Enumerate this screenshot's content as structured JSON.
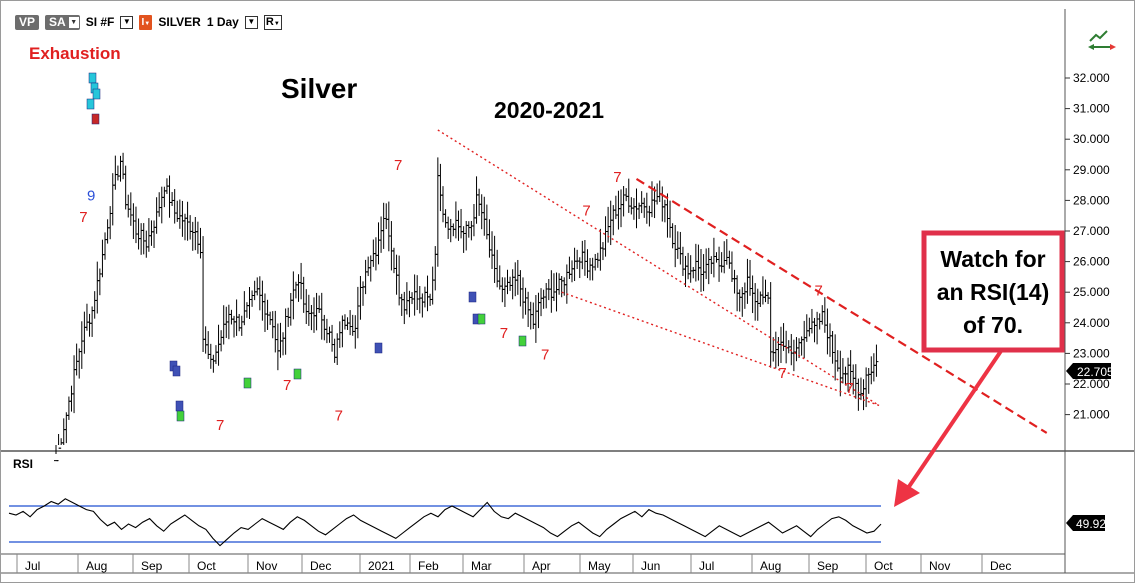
{
  "toolbar": {
    "vp_label": "VP",
    "sa_label": "SA",
    "symbol": "SI #F",
    "indicator_label": "I",
    "instrument": "SILVER",
    "timeframe": "1 Day",
    "r_label": "R"
  },
  "texts": {
    "exhaustion": "Exhaustion",
    "title": "Silver",
    "subtitle": "2020-2021",
    "rsi_title": "RSI",
    "callout": [
      "Watch for",
      "an RSI(14)",
      "of 70."
    ],
    "last_price": "22.705",
    "rsi_last": "49.92"
  },
  "colors": {
    "bars": "#000000",
    "trendline": "#e02020",
    "callout_border": "#e0304a",
    "arrow": "#ee3344",
    "rsi_line": "#000000",
    "rsi_bands": "#1f4fd0",
    "exhaustion_text": "#e02020",
    "setup_text": "#e02020",
    "blue_marks": "#2a4fd8"
  },
  "chart_data": {
    "type": "bar",
    "instrument": "SILVER",
    "timeframe": "1 Day",
    "price_axis": {
      "ticks": [
        "32.000",
        "31.000",
        "30.000",
        "29.000",
        "28.000",
        "27.000",
        "26.000",
        "25.000",
        "24.000",
        "23.000",
        "22.000",
        "21.000"
      ],
      "ylim": [
        20.4,
        32.7
      ]
    },
    "x_tick_labels": [
      "Jul",
      "Aug",
      "Sep",
      "Oct",
      "Nov",
      "Dec",
      "2021",
      "Feb",
      "Mar",
      "Apr",
      "May",
      "Jun",
      "Jul",
      "Aug",
      "Sep",
      "Oct",
      "Nov",
      "Dec"
    ],
    "price_path": [
      [
        0,
        19.5
      ],
      [
        4,
        21.0
      ],
      [
        7,
        22.3
      ],
      [
        10,
        23.5
      ],
      [
        14,
        24.4
      ],
      [
        18,
        26.2
      ],
      [
        22,
        28.3
      ],
      [
        25,
        29.3
      ],
      [
        27,
        28.0
      ],
      [
        31,
        27.0
      ],
      [
        35,
        26.6
      ],
      [
        39,
        27.5
      ],
      [
        42,
        28.5
      ],
      [
        46,
        27.6
      ],
      [
        50,
        27.3
      ],
      [
        54,
        27.0
      ],
      [
        56,
        26.5
      ],
      [
        57,
        23.5
      ],
      [
        60,
        22.6
      ],
      [
        63,
        23.3
      ],
      [
        67,
        24.3
      ],
      [
        71,
        24.0
      ],
      [
        74,
        24.4
      ],
      [
        78,
        25.0
      ],
      [
        81,
        24.5
      ],
      [
        84,
        24.0
      ],
      [
        86,
        23.0
      ],
      [
        88,
        23.6
      ],
      [
        91,
        24.8
      ],
      [
        94,
        25.5
      ],
      [
        97,
        24.2
      ],
      [
        100,
        24.4
      ],
      [
        103,
        24.2
      ],
      [
        106,
        23.6
      ],
      [
        108,
        22.8
      ],
      [
        110,
        23.8
      ],
      [
        113,
        24.2
      ],
      [
        116,
        23.8
      ],
      [
        118,
        25.0
      ],
      [
        121,
        26.0
      ],
      [
        124,
        26.4
      ],
      [
        127,
        27.5
      ],
      [
        129,
        27.0
      ],
      [
        131,
        26.0
      ],
      [
        133,
        25.0
      ],
      [
        135,
        24.6
      ],
      [
        138,
        25.0
      ],
      [
        141,
        24.7
      ],
      [
        143,
        24.8
      ],
      [
        145,
        24.7
      ],
      [
        147,
        26.3
      ],
      [
        148,
        29.0
      ],
      [
        149,
        28.0
      ],
      [
        152,
        27.2
      ],
      [
        155,
        27.3
      ],
      [
        158,
        26.9
      ],
      [
        161,
        27.2
      ],
      [
        163,
        28.0
      ],
      [
        165,
        27.6
      ],
      [
        167,
        26.8
      ],
      [
        170,
        25.6
      ],
      [
        173,
        25.0
      ],
      [
        176,
        25.2
      ],
      [
        179,
        25.4
      ],
      [
        182,
        24.6
      ],
      [
        185,
        24.0
      ],
      [
        188,
        24.8
      ],
      [
        191,
        25.0
      ],
      [
        194,
        25.1
      ],
      [
        197,
        25.4
      ],
      [
        200,
        25.9
      ],
      [
        203,
        26.2
      ],
      [
        206,
        25.9
      ],
      [
        209,
        26.0
      ],
      [
        212,
        26.5
      ],
      [
        215,
        27.4
      ],
      [
        218,
        27.8
      ],
      [
        221,
        28.1
      ],
      [
        224,
        27.8
      ],
      [
        227,
        27.9
      ],
      [
        230,
        27.8
      ],
      [
        233,
        28.1
      ],
      [
        236,
        27.9
      ],
      [
        239,
        26.8
      ],
      [
        242,
        26.1
      ],
      [
        245,
        25.7
      ],
      [
        248,
        25.9
      ],
      [
        251,
        25.6
      ],
      [
        254,
        26.0
      ],
      [
        257,
        25.9
      ],
      [
        260,
        26.3
      ],
      [
        262,
        25.4
      ],
      [
        265,
        24.9
      ],
      [
        268,
        25.3
      ],
      [
        271,
        24.6
      ],
      [
        274,
        25.0
      ],
      [
        276,
        24.6
      ],
      [
        277,
        23.0
      ],
      [
        279,
        23.2
      ],
      [
        282,
        23.4
      ],
      [
        285,
        22.9
      ],
      [
        288,
        23.3
      ],
      [
        291,
        23.9
      ],
      [
        294,
        23.8
      ],
      [
        297,
        24.2
      ],
      [
        299,
        23.7
      ],
      [
        301,
        23.1
      ],
      [
        304,
        22.4
      ],
      [
        307,
        22.4
      ],
      [
        310,
        22.0
      ],
      [
        312,
        21.7
      ],
      [
        314,
        22.3
      ],
      [
        316,
        22.5
      ],
      [
        318,
        22.7
      ]
    ],
    "trendlines": [
      {
        "style": "dotted",
        "from": [
          148,
          30.3
        ],
        "to": [
          319,
          21.3
        ]
      },
      {
        "style": "dotted",
        "from": [
          196,
          25.0
        ],
        "to": [
          319,
          21.3
        ]
      },
      {
        "style": "dashed",
        "from": [
          225,
          28.7
        ],
        "to": [
          384,
          20.4
        ]
      }
    ],
    "rsi": {
      "title": "RSI",
      "period": 14,
      "upper_band": 70,
      "lower_band": 30,
      "last_value": 49.92,
      "values": [
        62,
        60,
        64,
        58,
        66,
        70,
        75,
        72,
        78,
        74,
        70,
        66,
        64,
        55,
        48,
        52,
        44,
        50,
        46,
        52,
        56,
        48,
        42,
        50,
        55,
        60,
        54,
        48,
        44,
        34,
        26,
        33,
        40,
        46,
        44,
        50,
        56,
        52,
        48,
        44,
        52,
        58,
        54,
        48,
        42,
        38,
        44,
        50,
        56,
        60,
        54,
        50,
        46,
        42,
        38,
        34,
        40,
        46,
        52,
        58,
        62,
        58,
        66,
        70,
        66,
        62,
        58,
        66,
        74,
        64,
        58,
        56,
        62,
        58,
        54,
        50,
        46,
        40,
        36,
        42,
        48,
        52,
        46,
        40,
        36,
        44,
        50,
        56,
        60,
        64,
        58,
        66,
        62,
        60,
        56,
        52,
        48,
        44,
        40,
        36,
        42,
        48,
        44,
        40,
        36,
        40,
        44,
        48,
        52,
        46,
        40,
        44,
        48,
        42,
        36,
        44,
        50,
        56,
        58,
        54,
        48,
        44,
        40,
        42,
        49.92
      ]
    },
    "annotations": [
      {
        "text": "9",
        "color": "blue",
        "x": 12,
        "y": 28.0
      },
      {
        "text": "7",
        "color": "red",
        "x": 9,
        "y": 27.3
      },
      {
        "text": "7",
        "color": "red",
        "x": 131,
        "y": 29.0
      },
      {
        "text": "7",
        "color": "red",
        "x": 204,
        "y": 27.5
      },
      {
        "text": "7",
        "color": "red",
        "x": 216,
        "y": 28.6
      },
      {
        "text": "7",
        "color": "red",
        "x": 62,
        "y": 20.5
      },
      {
        "text": "7",
        "color": "red",
        "x": 88,
        "y": 21.8
      },
      {
        "text": "7",
        "color": "red",
        "x": 108,
        "y": 20.8
      },
      {
        "text": "7",
        "color": "red",
        "x": 172,
        "y": 23.5
      },
      {
        "text": "7",
        "color": "red",
        "x": 188,
        "y": 22.8
      },
      {
        "text": "7",
        "color": "red",
        "x": 280,
        "y": 22.2
      },
      {
        "text": "7",
        "color": "red",
        "x": 294,
        "y": 24.9
      },
      {
        "text": "7",
        "color": "red",
        "x": 306,
        "y": 21.7
      }
    ]
  }
}
